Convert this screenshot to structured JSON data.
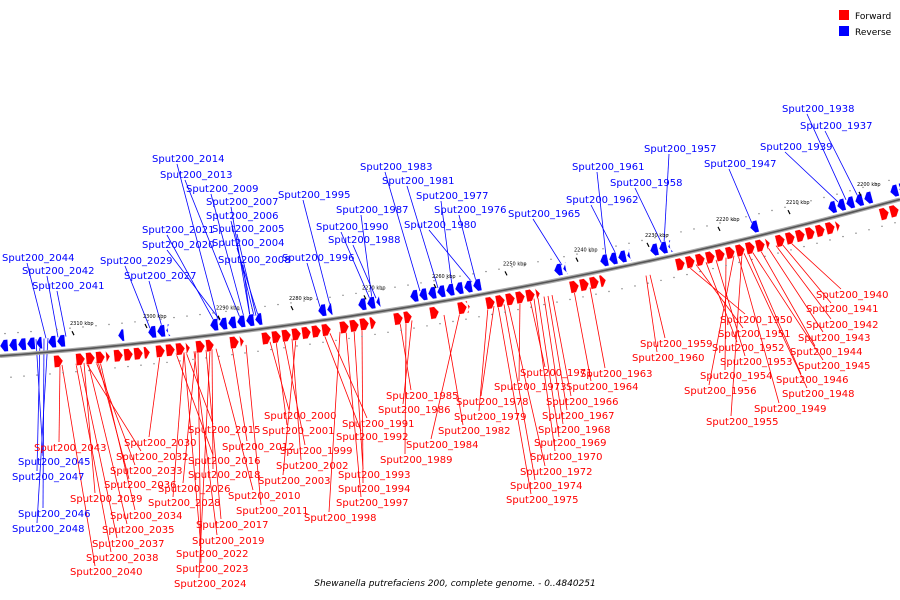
{
  "legend": {
    "forward_label": "Forward",
    "reverse_label": "Reverse",
    "forward_color": "#ff0000",
    "reverse_color": "#0000ff"
  },
  "caption": "Shewanella putrefaciens 200, complete genome. - 0..4840251",
  "ticks": [
    "2310 kbp",
    "2300 kbp",
    "2290 kbp",
    "2280 kbp",
    "2270 kbp",
    "2260 kbp",
    "2250 kbp",
    "2240 kbp",
    "2230 kbp",
    "2220 kbp",
    "2210 kbp",
    "2200 kbp"
  ],
  "reverse_genes": [
    "Sput200_2044",
    "Sput200_2042",
    "Sput200_2041",
    "Sput200_2029",
    "Sput200_2027",
    "Sput200_2021",
    "Sput200_2020",
    "Sput200_2014",
    "Sput200_2013",
    "Sput200_2009",
    "Sput200_2007",
    "Sput200_2006",
    "Sput200_2005",
    "Sput200_2004",
    "Sput200_2008",
    "Sput200_1995",
    "Sput200_1996",
    "Sput200_1990",
    "Sput200_1988",
    "Sput200_1987",
    "Sput200_1983",
    "Sput200_1981",
    "Sput200_1977",
    "Sput200_1980",
    "Sput200_1976",
    "Sput200_1965",
    "Sput200_1961",
    "Sput200_1962",
    "Sput200_1958",
    "Sput200_1957",
    "Sput200_1947",
    "Sput200_1939",
    "Sput200_1938",
    "Sput200_1937",
    "Sput200_2045",
    "Sput200_2047",
    "Sput200_2046",
    "Sput200_2048"
  ],
  "forward_genes": [
    "Sput200_2043",
    "Sput200_2032",
    "Sput200_2033",
    "Sput200_2030",
    "Sput200_2036",
    "Sput200_2039",
    "Sput200_2026",
    "Sput200_2028",
    "Sput200_2034",
    "Sput200_2035",
    "Sput200_2037",
    "Sput200_2038",
    "Sput200_2040",
    "Sput200_2015",
    "Sput200_2012",
    "Sput200_2016",
    "Sput200_2018",
    "Sput200_2010",
    "Sput200_2011",
    "Sput200_2017",
    "Sput200_2019",
    "Sput200_2022",
    "Sput200_2023",
    "Sput200_2024",
    "Sput200_2000",
    "Sput200_2001",
    "Sput200_1999",
    "Sput200_2002",
    "Sput200_2003",
    "Sput200_1991",
    "Sput200_1992",
    "Sput200_1993",
    "Sput200_1994",
    "Sput200_1997",
    "Sput200_1998",
    "Sput200_1985",
    "Sput200_1986",
    "Sput200_1989",
    "Sput200_1982",
    "Sput200_1984",
    "Sput200_1978",
    "Sput200_1979",
    "Sput200_1971",
    "Sput200_1973",
    "Sput200_1963",
    "Sput200_1964",
    "Sput200_1966",
    "Sput200_1967",
    "Sput200_1968",
    "Sput200_1969",
    "Sput200_1970",
    "Sput200_1972",
    "Sput200_1974",
    "Sput200_1975",
    "Sput200_1959",
    "Sput200_1960",
    "Sput200_1950",
    "Sput200_1951",
    "Sput200_1952",
    "Sput200_1953",
    "Sput200_1954",
    "Sput200_1956",
    "Sput200_1955",
    "Sput200_1940",
    "Sput200_1941",
    "Sput200_1942",
    "Sput200_1943",
    "Sput200_1944",
    "Sput200_1945",
    "Sput200_1946",
    "Sput200_1948",
    "Sput200_1949"
  ]
}
